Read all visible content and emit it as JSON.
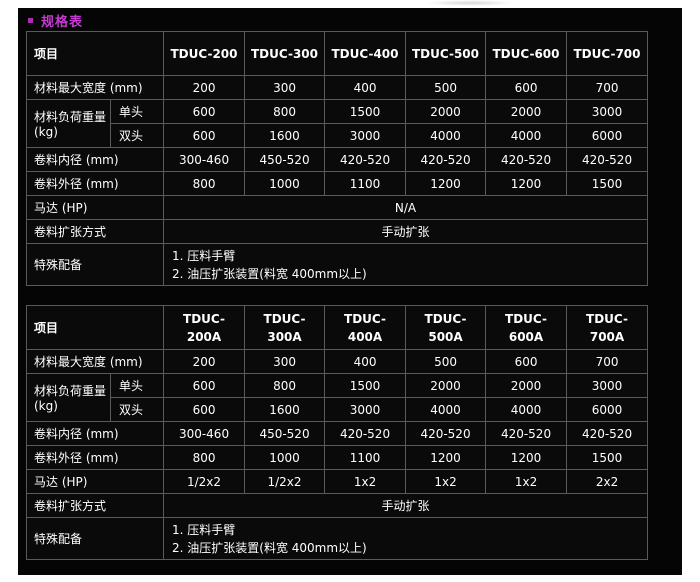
{
  "heading": "规格表",
  "table1": {
    "item_label": "项目",
    "models": [
      "TDUC-200",
      "TDUC-300",
      "TDUC-400",
      "TDUC-500",
      "TDUC-600",
      "TDUC-700"
    ],
    "rows": {
      "width": {
        "label": "材料最大宽度 (mm)",
        "values": [
          "200",
          "300",
          "400",
          "500",
          "600",
          "700"
        ]
      },
      "load": {
        "label": "材料负荷重量",
        "unit": "(kg)",
        "single_label": "单头",
        "single_values": [
          "600",
          "800",
          "1500",
          "2000",
          "2000",
          "3000"
        ],
        "double_label": "双头",
        "double_values": [
          "600",
          "1600",
          "3000",
          "4000",
          "4000",
          "6000"
        ]
      },
      "inner": {
        "label": "卷料内径 (mm)",
        "values": [
          "300-460",
          "450-520",
          "420-520",
          "420-520",
          "420-520",
          "420-520"
        ]
      },
      "outer": {
        "label": "卷料外径 (mm)",
        "values": [
          "800",
          "1000",
          "1100",
          "1200",
          "1200",
          "1500"
        ]
      },
      "motor": {
        "label": "马达 (HP)",
        "value": "N/A"
      },
      "expand": {
        "label": "卷料扩张方式",
        "value": "手动扩张"
      },
      "special": {
        "label": "特殊配备",
        "items": [
          "1. 压料手臂",
          "2. 油压扩张装置(料宽 400mm以上)"
        ]
      }
    }
  },
  "table2": {
    "item_label": "项目",
    "models": [
      {
        "line1": "TDUC-",
        "line2": "200A"
      },
      {
        "line1": "TDUC-",
        "line2": "300A"
      },
      {
        "line1": "TDUC-",
        "line2": "400A"
      },
      {
        "line1": "TDUC-",
        "line2": "500A"
      },
      {
        "line1": "TDUC-",
        "line2": "600A"
      },
      {
        "line1": "TDUC-",
        "line2": "700A"
      }
    ],
    "rows": {
      "width": {
        "label": "材料最大宽度 (mm)",
        "values": [
          "200",
          "300",
          "400",
          "500",
          "600",
          "700"
        ]
      },
      "load": {
        "label": "材料负荷重量",
        "unit": "(kg)",
        "single_label": "单头",
        "single_values": [
          "600",
          "800",
          "1500",
          "2000",
          "2000",
          "3000"
        ],
        "double_label": "双头",
        "double_values": [
          "600",
          "1600",
          "3000",
          "4000",
          "4000",
          "6000"
        ]
      },
      "inner": {
        "label": "卷料内径 (mm)",
        "values": [
          "300-460",
          "450-520",
          "420-520",
          "420-520",
          "420-520",
          "420-520"
        ]
      },
      "outer": {
        "label": "卷料外径 (mm)",
        "values": [
          "800",
          "1000",
          "1100",
          "1200",
          "1200",
          "1500"
        ]
      },
      "motor": {
        "label": "马达 (HP)",
        "values": [
          "1/2x2",
          "1/2x2",
          "1x2",
          "1x2",
          "1x2",
          "2x2"
        ]
      },
      "expand": {
        "label": "卷料扩张方式",
        "value": "手动扩张"
      },
      "special": {
        "label": "特殊配备",
        "items": [
          "1. 压料手臂",
          "2. 油压扩张装置(料宽 400mm以上)"
        ]
      }
    }
  }
}
